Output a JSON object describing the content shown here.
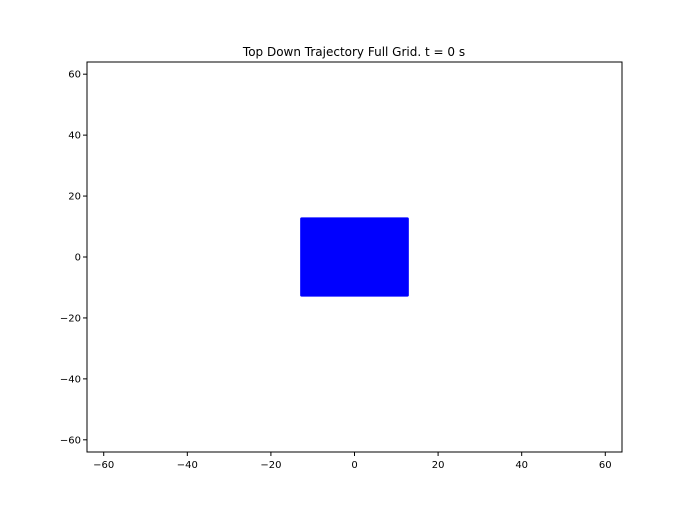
{
  "chart_data": {
    "type": "scatter",
    "title": "Top Down Trajectory Full Grid. t = 0 s",
    "xlabel": "",
    "ylabel": "",
    "xlim": [
      -64,
      64
    ],
    "ylim": [
      -64,
      64
    ],
    "x_ticks": [
      -60,
      -40,
      -20,
      0,
      20,
      40,
      60
    ],
    "y_ticks": [
      -60,
      -40,
      -20,
      0,
      20,
      40,
      60
    ],
    "x_tick_labels": [
      "−60",
      "−40",
      "−20",
      "0",
      "20",
      "40",
      "60"
    ],
    "y_tick_labels": [
      "−60",
      "−40",
      "−20",
      "0",
      "20",
      "40",
      "60"
    ],
    "grid": false,
    "legend": "none",
    "series": [
      {
        "marker": "filled square region",
        "color": "#0000ff",
        "x_range": [
          -13,
          13
        ],
        "y_range": [
          -13,
          13
        ]
      }
    ]
  }
}
